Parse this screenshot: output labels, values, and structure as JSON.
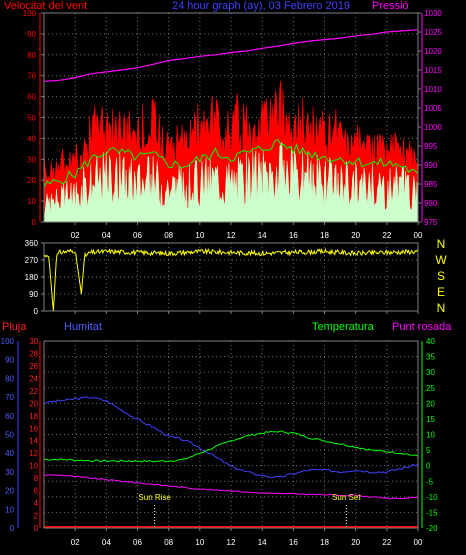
{
  "header": {
    "wind_title": "Velocitat del vent",
    "graph_title": "24 hour graph (ay),  03 Febrero 2019",
    "pressure_title": "Pressió",
    "wind_color": "#ff0000",
    "title_color": "#4040ff",
    "pressure_color": "#ff00ff"
  },
  "footer_labels": {
    "pluja": "Pluja",
    "humitat": "Humitat",
    "temperatura": "Temperatura",
    "punt_rosada": "Punt rosada"
  },
  "compass_labels": [
    "N",
    "W",
    "S",
    "E",
    "N"
  ],
  "sun": {
    "rise_label": "Sun Rise",
    "set_label": "Sun Set",
    "rise_hour": 7.1,
    "set_hour": 19.4
  },
  "x_ticks": [
    "02",
    "04",
    "06",
    "08",
    "10",
    "12",
    "14",
    "16",
    "18",
    "20",
    "22",
    "00"
  ],
  "chart_data": [
    {
      "type": "line",
      "name": "wind_pressure",
      "x_range_hours": [
        0,
        24
      ],
      "left_axis": {
        "ticks": [
          0,
          10,
          20,
          30,
          40,
          50,
          60,
          70,
          80,
          90,
          100
        ],
        "ylim": [
          0,
          100
        ]
      },
      "right_axis": {
        "ticks": [
          975,
          980,
          985,
          990,
          995,
          1000,
          1005,
          1010,
          1015,
          1020,
          1025,
          1030
        ],
        "ylim": [
          975,
          1030
        ]
      },
      "series": [
        {
          "key": "pressure",
          "color": "#ff00ff",
          "x": [
            0,
            1,
            2,
            3,
            4,
            5,
            6,
            7,
            8,
            9,
            10,
            11,
            12,
            13,
            14,
            15,
            16,
            17,
            18,
            19,
            20,
            21,
            22,
            23,
            24
          ],
          "values": [
            1012,
            1012.3,
            1013,
            1014,
            1014.5,
            1015,
            1015.6,
            1016.5,
            1017.5,
            1018,
            1018.6,
            1019,
            1019.6,
            1020,
            1020.7,
            1021.3,
            1022,
            1022.6,
            1023,
            1023.4,
            1024,
            1024.4,
            1025,
            1025.3,
            1025.6
          ]
        },
        {
          "key": "gust",
          "color": "#ff0000",
          "x": [
            0,
            1,
            2,
            3,
            4,
            5,
            6,
            7,
            8,
            9,
            10,
            11,
            12,
            13,
            14,
            15,
            16,
            17,
            18,
            19,
            20,
            21,
            22,
            23,
            24
          ],
          "values": [
            28,
            30,
            33,
            46,
            52,
            50,
            48,
            50,
            44,
            42,
            47,
            55,
            50,
            53,
            55,
            58,
            53,
            50,
            43,
            44,
            42,
            41,
            40,
            38,
            33
          ]
        },
        {
          "key": "average",
          "color": "#00ff00",
          "x": [
            0,
            1,
            2,
            3,
            4,
            5,
            6,
            7,
            8,
            9,
            10,
            11,
            12,
            13,
            14,
            15,
            16,
            17,
            18,
            19,
            20,
            21,
            22,
            23,
            24
          ],
          "values": [
            17,
            20,
            23,
            30,
            34,
            33,
            31,
            32,
            28,
            27,
            30,
            33,
            31,
            33,
            35,
            38,
            35,
            33,
            31,
            30,
            29,
            28,
            28,
            27,
            22
          ]
        },
        {
          "key": "speed",
          "color": "#ccffcc",
          "x": [
            0,
            1,
            2,
            3,
            4,
            5,
            6,
            7,
            8,
            9,
            10,
            11,
            12,
            13,
            14,
            15,
            16,
            17,
            18,
            19,
            20,
            21,
            22,
            23,
            24
          ],
          "values": [
            9,
            12,
            15,
            21,
            24,
            23,
            21,
            22,
            19,
            18,
            21,
            23,
            21,
            23,
            25,
            27,
            24,
            23,
            21,
            20,
            20,
            19,
            19,
            18,
            14
          ]
        }
      ]
    },
    {
      "type": "line",
      "name": "wind_direction",
      "x_range_hours": [
        0,
        24
      ],
      "left_axis": {
        "ticks": [
          0,
          90,
          180,
          270,
          360
        ],
        "ylim": [
          0,
          360
        ]
      },
      "series": [
        {
          "key": "direction",
          "color": "#ffff00",
          "x": [
            0,
            0.3,
            0.6,
            0.8,
            1,
            2,
            2.4,
            2.6,
            3,
            4,
            6,
            8,
            10,
            12,
            14,
            16,
            18,
            20,
            22,
            24
          ],
          "values": [
            290,
            300,
            0,
            290,
            310,
            320,
            90,
            290,
            310,
            315,
            310,
            305,
            315,
            310,
            305,
            310,
            315,
            305,
            310,
            315
          ]
        }
      ]
    },
    {
      "type": "line",
      "name": "rain_humidity_temperature",
      "x_range_hours": [
        0,
        24
      ],
      "humidity_axis": {
        "ticks": [
          0,
          10,
          20,
          30,
          40,
          50,
          60,
          70,
          80,
          90,
          100
        ],
        "ylim": [
          0,
          100
        ]
      },
      "rain_axis": {
        "ticks": [
          0,
          2,
          4,
          6,
          8,
          10,
          12,
          14,
          16,
          18,
          20,
          22,
          24,
          26,
          28,
          30
        ],
        "ylim": [
          0,
          30
        ]
      },
      "temperature_axis": {
        "ticks": [
          -20,
          -15,
          -10,
          -5,
          0,
          5,
          10,
          15,
          20,
          25,
          30,
          35,
          40
        ],
        "ylim": [
          -20,
          40
        ]
      },
      "series": [
        {
          "key": "humidity",
          "color": "#4040ff",
          "x": [
            0,
            1,
            2,
            3,
            4,
            5,
            6,
            7,
            8,
            9,
            10,
            11,
            12,
            13,
            14,
            15,
            16,
            17,
            18,
            19,
            20,
            21,
            22,
            23,
            24
          ],
          "values": [
            67,
            68,
            69,
            70,
            68,
            63,
            58,
            54,
            49,
            47,
            43,
            38,
            33,
            30,
            28,
            27,
            29,
            31,
            31,
            30,
            31,
            30,
            30,
            32,
            34
          ]
        },
        {
          "key": "temperature",
          "color": "#00ff00",
          "x": [
            0,
            1,
            2,
            3,
            4,
            5,
            6,
            7,
            8,
            9,
            10,
            11,
            12,
            13,
            14,
            15,
            16,
            17,
            18,
            19,
            20,
            21,
            22,
            23,
            24
          ],
          "values": [
            2,
            2,
            1.8,
            1.6,
            1.5,
            1.5,
            1.5,
            1.4,
            1.5,
            2,
            4,
            6,
            8,
            9.5,
            10.5,
            11,
            10.5,
            9,
            8,
            7,
            6,
            5,
            4.5,
            4,
            3
          ]
        },
        {
          "key": "dew_point",
          "color": "#ff00ff",
          "x": [
            0,
            1,
            2,
            3,
            4,
            5,
            6,
            7,
            8,
            9,
            10,
            11,
            12,
            13,
            14,
            15,
            16,
            17,
            18,
            19,
            20,
            21,
            22,
            23,
            24
          ],
          "values": [
            -3,
            -3,
            -3.5,
            -4,
            -4.5,
            -5,
            -5.5,
            -6,
            -6.5,
            -7,
            -7.5,
            -7.8,
            -8,
            -8.5,
            -8.8,
            -9,
            -9,
            -9.2,
            -9.3,
            -9.5,
            -9.5,
            -10,
            -10.5,
            -10.5,
            -10
          ]
        },
        {
          "key": "rain",
          "color": "#ff0000",
          "x": [
            0,
            24
          ],
          "values": [
            0,
            0
          ]
        }
      ]
    }
  ]
}
